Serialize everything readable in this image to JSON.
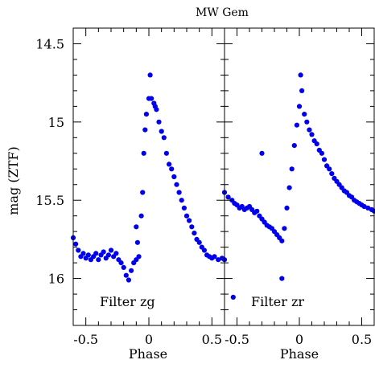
{
  "title": "MW Gem",
  "ylabel": "mag (ZTF)",
  "chart_data": [
    {
      "type": "scatter",
      "panel_label": "Filter zg",
      "xlabel": "Phase",
      "xlim": [
        -0.6,
        0.6
      ],
      "ylim": [
        16.3,
        14.4
      ],
      "y_inverted": true,
      "xticks": [
        "-0.5",
        "0",
        "0.5"
      ],
      "yticks": [
        "14.5",
        "15",
        "15.5",
        "16"
      ],
      "series": [
        {
          "color": "#0000ee",
          "points": [
            [
              -0.6,
              15.74
            ],
            [
              -0.58,
              15.78
            ],
            [
              -0.56,
              15.82
            ],
            [
              -0.54,
              15.86
            ],
            [
              -0.52,
              15.84
            ],
            [
              -0.5,
              15.87
            ],
            [
              -0.48,
              15.85
            ],
            [
              -0.46,
              15.88
            ],
            [
              -0.44,
              15.86
            ],
            [
              -0.42,
              15.84
            ],
            [
              -0.4,
              15.88
            ],
            [
              -0.38,
              15.85
            ],
            [
              -0.36,
              15.83
            ],
            [
              -0.34,
              15.87
            ],
            [
              -0.32,
              15.85
            ],
            [
              -0.3,
              15.82
            ],
            [
              -0.28,
              15.86
            ],
            [
              -0.26,
              15.84
            ],
            [
              -0.24,
              15.88
            ],
            [
              -0.22,
              15.9
            ],
            [
              -0.2,
              15.93
            ],
            [
              -0.18,
              15.98
            ],
            [
              -0.16,
              16.01
            ],
            [
              -0.14,
              15.95
            ],
            [
              -0.12,
              15.9
            ],
            [
              -0.1,
              15.88
            ],
            [
              -0.08,
              15.86
            ],
            [
              -0.06,
              15.6
            ],
            [
              -0.05,
              15.45
            ],
            [
              -0.04,
              15.2
            ],
            [
              -0.03,
              15.05
            ],
            [
              -0.02,
              14.95
            ],
            [
              0.0,
              14.85
            ],
            [
              0.01,
              14.7
            ],
            [
              0.02,
              14.85
            ],
            [
              0.04,
              14.88
            ],
            [
              0.06,
              14.92
            ],
            [
              0.08,
              15.0
            ],
            [
              0.1,
              15.06
            ],
            [
              0.12,
              15.1
            ],
            [
              0.14,
              15.2
            ],
            [
              0.16,
              15.27
            ],
            [
              0.18,
              15.3
            ],
            [
              0.2,
              15.35
            ],
            [
              0.22,
              15.4
            ],
            [
              0.24,
              15.45
            ],
            [
              0.26,
              15.5
            ],
            [
              0.28,
              15.55
            ],
            [
              0.3,
              15.6
            ],
            [
              0.32,
              15.63
            ],
            [
              0.34,
              15.67
            ],
            [
              0.36,
              15.71
            ],
            [
              0.38,
              15.75
            ],
            [
              0.4,
              15.77
            ],
            [
              0.42,
              15.8
            ],
            [
              0.44,
              15.82
            ],
            [
              0.46,
              15.85
            ],
            [
              0.48,
              15.86
            ],
            [
              0.5,
              15.87
            ],
            [
              0.52,
              15.86
            ],
            [
              0.55,
              15.88
            ],
            [
              0.58,
              15.87
            ],
            [
              0.6,
              15.88
            ],
            [
              -0.1,
              15.67
            ],
            [
              0.05,
              14.9
            ],
            [
              -0.09,
              15.77
            ]
          ]
        }
      ]
    },
    {
      "type": "scatter",
      "panel_label": "Filter zr",
      "xlabel": "Phase",
      "xlim": [
        -0.6,
        0.6
      ],
      "ylim": [
        16.3,
        14.4
      ],
      "y_inverted": true,
      "xticks": [
        "-0.5",
        "0",
        "0.5"
      ],
      "yticks": [
        "14.5",
        "15",
        "15.5",
        "16"
      ],
      "series": [
        {
          "color": "#0000ee",
          "points": [
            [
              -0.6,
              15.45
            ],
            [
              -0.57,
              15.48
            ],
            [
              -0.54,
              15.5
            ],
            [
              -0.52,
              15.52
            ],
            [
              -0.5,
              15.53
            ],
            [
              -0.48,
              15.55
            ],
            [
              -0.46,
              15.54
            ],
            [
              -0.44,
              15.56
            ],
            [
              -0.42,
              15.55
            ],
            [
              -0.4,
              15.54
            ],
            [
              -0.38,
              15.56
            ],
            [
              -0.36,
              15.58
            ],
            [
              -0.34,
              15.57
            ],
            [
              -0.32,
              15.6
            ],
            [
              -0.3,
              15.62
            ],
            [
              -0.28,
              15.64
            ],
            [
              -0.26,
              15.66
            ],
            [
              -0.24,
              15.67
            ],
            [
              -0.22,
              15.68
            ],
            [
              -0.2,
              15.7
            ],
            [
              -0.18,
              15.72
            ],
            [
              -0.16,
              15.74
            ],
            [
              -0.14,
              15.76
            ],
            [
              -0.12,
              15.68
            ],
            [
              -0.1,
              15.55
            ],
            [
              -0.08,
              15.42
            ],
            [
              -0.06,
              15.3
            ],
            [
              -0.04,
              15.15
            ],
            [
              -0.02,
              15.02
            ],
            [
              0.0,
              14.9
            ],
            [
              0.01,
              14.7
            ],
            [
              0.02,
              14.8
            ],
            [
              0.04,
              14.95
            ],
            [
              0.06,
              15.0
            ],
            [
              0.08,
              15.05
            ],
            [
              0.1,
              15.08
            ],
            [
              0.12,
              15.12
            ],
            [
              0.14,
              15.14
            ],
            [
              0.16,
              15.18
            ],
            [
              0.18,
              15.2
            ],
            [
              0.2,
              15.24
            ],
            [
              0.22,
              15.28
            ],
            [
              0.24,
              15.3
            ],
            [
              0.26,
              15.33
            ],
            [
              0.28,
              15.36
            ],
            [
              0.3,
              15.38
            ],
            [
              0.32,
              15.4
            ],
            [
              0.34,
              15.42
            ],
            [
              0.36,
              15.44
            ],
            [
              0.38,
              15.45
            ],
            [
              0.4,
              15.47
            ],
            [
              0.42,
              15.48
            ],
            [
              0.44,
              15.5
            ],
            [
              0.46,
              15.51
            ],
            [
              0.48,
              15.52
            ],
            [
              0.5,
              15.53
            ],
            [
              0.52,
              15.54
            ],
            [
              0.55,
              15.55
            ],
            [
              0.58,
              15.56
            ],
            [
              0.6,
              15.57
            ],
            [
              -0.3,
              15.2
            ],
            [
              -0.14,
              16.0
            ],
            [
              -0.53,
              16.12
            ]
          ]
        }
      ]
    }
  ]
}
